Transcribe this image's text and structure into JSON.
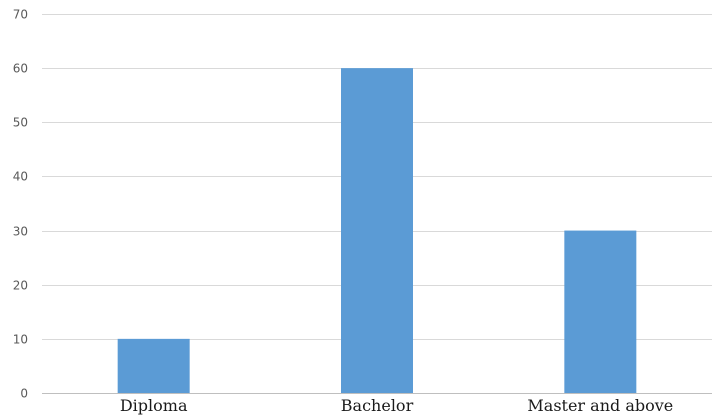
{
  "chart_data": {
    "type": "bar",
    "title": "",
    "xlabel": "",
    "ylabel": "",
    "categories": [
      "Diploma",
      "Bachelor",
      "Master and above"
    ],
    "values": [
      10,
      60,
      30
    ],
    "ylim": [
      0,
      70
    ],
    "yticks": [
      "0",
      "10",
      "20",
      "30",
      "40",
      "50",
      "60",
      "70"
    ],
    "grid": true,
    "legend": "none",
    "bar_color": "#5b9bd5",
    "grid_color": "#d9d9d9"
  }
}
